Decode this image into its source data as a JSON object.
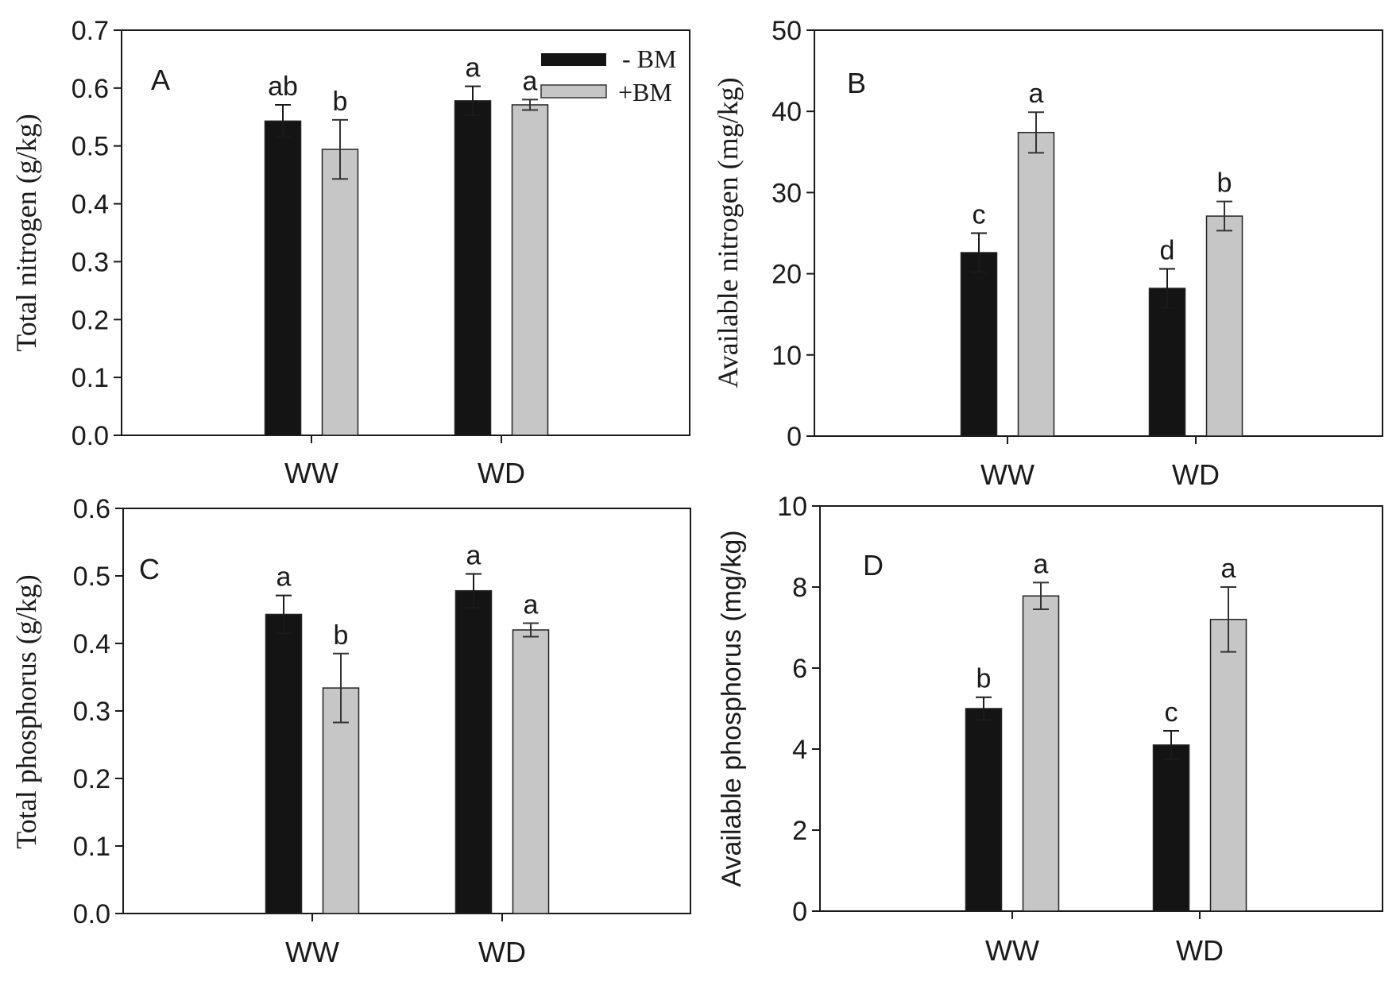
{
  "colors": {
    "minus_bm": "#141414",
    "plus_bm": "#c6c6c6",
    "axis": "#1a1a1a"
  },
  "legend": {
    "minus_label": "- BM",
    "plus_label": "+BM"
  },
  "chart_data": [
    {
      "type": "bar",
      "panel": "A",
      "ylabel": "Total nitrogen (g/kg)",
      "categories": [
        "WW",
        "WD"
      ],
      "ylim": [
        0,
        0.7
      ],
      "yticks": [
        "0.0",
        "0.1",
        "0.2",
        "0.3",
        "0.4",
        "0.5",
        "0.6",
        "0.7"
      ],
      "series": [
        {
          "name": "- BM",
          "values": [
            0.543,
            0.578
          ],
          "errors": [
            0.028,
            0.025
          ],
          "letters": [
            "ab",
            "a"
          ]
        },
        {
          "name": "+BM",
          "values": [
            0.494,
            0.571
          ],
          "errors": [
            0.051,
            0.009
          ],
          "letters": [
            "b",
            "a"
          ]
        }
      ]
    },
    {
      "type": "bar",
      "panel": "B",
      "ylabel": "Available nitrogen (mg/kg)",
      "categories": [
        "WW",
        "WD"
      ],
      "ylim": [
        0,
        50
      ],
      "yticks": [
        "0",
        "10",
        "20",
        "30",
        "40",
        "50"
      ],
      "series": [
        {
          "name": "- BM",
          "values": [
            22.6,
            18.2
          ],
          "errors": [
            2.4,
            2.4
          ],
          "letters": [
            "c",
            "d"
          ]
        },
        {
          "name": "+BM",
          "values": [
            37.4,
            27.1
          ],
          "errors": [
            2.5,
            1.8
          ],
          "letters": [
            "a",
            "b"
          ]
        }
      ]
    },
    {
      "type": "bar",
      "panel": "C",
      "ylabel": "Total phosphorus (g/kg)",
      "categories": [
        "WW",
        "WD"
      ],
      "ylim": [
        0,
        0.6
      ],
      "yticks": [
        "0.0",
        "0.1",
        "0.2",
        "0.3",
        "0.4",
        "0.5",
        "0.6"
      ],
      "series": [
        {
          "name": "- BM",
          "values": [
            0.443,
            0.478
          ],
          "errors": [
            0.028,
            0.025
          ],
          "letters": [
            "a",
            "a"
          ]
        },
        {
          "name": "+BM",
          "values": [
            0.334,
            0.42
          ],
          "errors": [
            0.051,
            0.01
          ],
          "letters": [
            "b",
            "a"
          ]
        }
      ]
    },
    {
      "type": "bar",
      "panel": "D",
      "ylabel": "Available phosphorus (mg/kg)",
      "categories": [
        "WW",
        "WD"
      ],
      "ylim": [
        0,
        10
      ],
      "yticks": [
        "0",
        "2",
        "4",
        "6",
        "8",
        "10"
      ],
      "series": [
        {
          "name": "- BM",
          "values": [
            5.0,
            4.1
          ],
          "errors": [
            0.28,
            0.35
          ],
          "letters": [
            "b",
            "c"
          ]
        },
        {
          "name": "+BM",
          "values": [
            7.78,
            7.2
          ],
          "errors": [
            0.33,
            0.8
          ],
          "letters": [
            "a",
            "a"
          ]
        }
      ]
    }
  ]
}
